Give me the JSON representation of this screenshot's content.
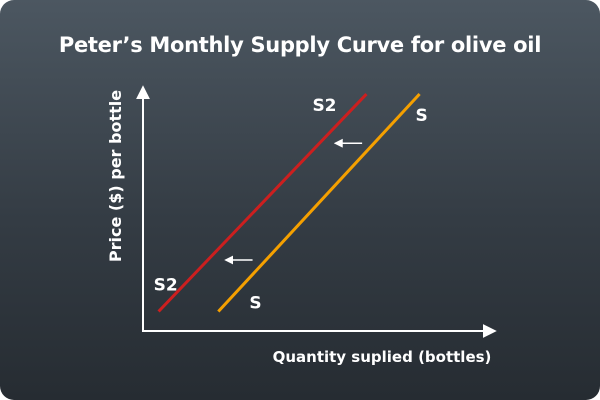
{
  "chart_data": {
    "type": "line",
    "title": "Peter’s Monthly Supply Curve for olive oil",
    "xlabel": "Quantity suplied (bottles)",
    "ylabel": "Price ($) per bottle",
    "xlim": [
      0,
      10
    ],
    "ylim": [
      0,
      10
    ],
    "grid": false,
    "legend": "none",
    "series": [
      {
        "name": "S",
        "color": "#f5a000",
        "x": [
          2.3,
          8.3
        ],
        "y": [
          0.9,
          10.3
        ],
        "label_start": "S",
        "label_end": "S"
      },
      {
        "name": "S2",
        "color": "#cc1f1f",
        "x": [
          0.5,
          6.7
        ],
        "y": [
          0.9,
          10.3
        ],
        "label_start": "S2",
        "label_end": "S2"
      }
    ],
    "annotations": [
      {
        "type": "arrow",
        "direction": "left",
        "x_from": 6.6,
        "x_to": 5.8,
        "y": 8.2,
        "color": "#ffffff"
      },
      {
        "type": "arrow",
        "direction": "left",
        "x_from": 3.3,
        "x_to": 2.5,
        "y": 3.1,
        "color": "#ffffff"
      }
    ]
  }
}
